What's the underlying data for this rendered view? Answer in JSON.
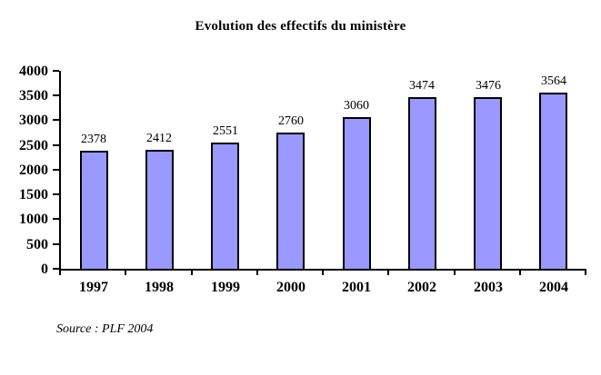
{
  "chart_data": {
    "type": "bar",
    "title": "Evolution des effectifs du ministère",
    "categories": [
      "1997",
      "1998",
      "1999",
      "2000",
      "2001",
      "2002",
      "2003",
      "2004"
    ],
    "values": [
      2378,
      2412,
      2551,
      2760,
      3060,
      3474,
      3476,
      3564
    ],
    "xlabel": "",
    "ylabel": "",
    "ylim": [
      0,
      4000
    ],
    "yticks": [
      0,
      500,
      1000,
      1500,
      2000,
      2500,
      3000,
      3500,
      4000
    ],
    "grid": false,
    "legend_position": "none",
    "bar_color": "#9999FF",
    "bar_border_color": "#000000",
    "axis_color": "#000000",
    "background_color": "#FFFFFF",
    "source_note": "Source : PLF 2004"
  }
}
